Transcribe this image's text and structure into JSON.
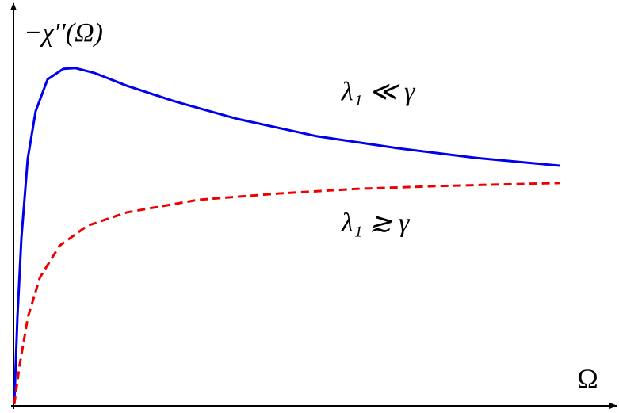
{
  "chart_data": {
    "type": "line",
    "x_label": "Ω",
    "y_label": "−χ′′(Ω)",
    "xlim": [
      0,
      11
    ],
    "ylim": [
      0,
      10
    ],
    "series": [
      {
        "color": "#0000ee",
        "style": "solid",
        "x": [
          0,
          0.058,
          0.131,
          0.247,
          0.392,
          0.61,
          0.9,
          1.12,
          1.48,
          2.06,
          2.94,
          4.1,
          5.55,
          7.01,
          8.46,
          10.0
        ],
        "values": [
          0,
          2.22,
          4.24,
          6.26,
          7.47,
          8.28,
          8.55,
          8.57,
          8.44,
          8.12,
          7.72,
          7.27,
          6.83,
          6.53,
          6.28,
          6.08
        ]
      },
      {
        "color": "#ee0000",
        "style": "dashed",
        "x": [
          0,
          0.1,
          0.25,
          0.47,
          0.83,
          1.34,
          2.06,
          3.37,
          4.83,
          6.28,
          7.73,
          10.0
        ],
        "values": [
          0,
          1.01,
          2.22,
          3.23,
          4.04,
          4.55,
          4.89,
          5.21,
          5.37,
          5.49,
          5.56,
          5.64
        ]
      }
    ],
    "annotations": [
      {
        "text": "λ₁ ≪ γ",
        "x": 6.0,
        "y": 7.75
      },
      {
        "text": "λ₁ ≳ γ",
        "x": 6.0,
        "y": 4.4
      }
    ]
  }
}
